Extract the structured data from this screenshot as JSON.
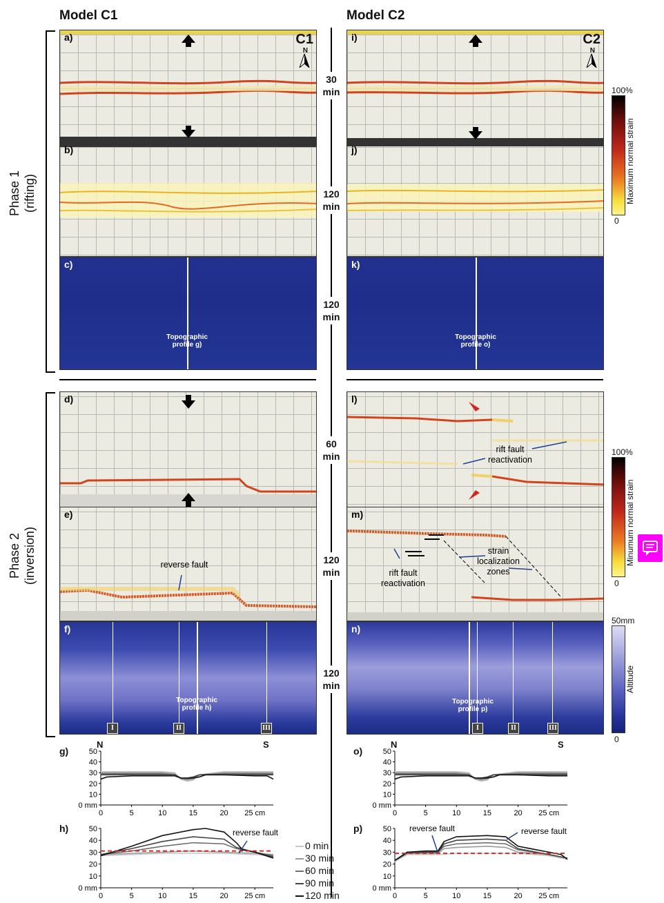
{
  "column_titles": {
    "c1": "Model C1",
    "c2": "Model C2"
  },
  "phase_labels": {
    "phase1": "Phase 1\n(rifting)",
    "phase2": "Phase 2\n(inversion)"
  },
  "panels": {
    "a": "a)",
    "b": "b)",
    "c": "c)",
    "d": "d)",
    "e": "e)",
    "f": "f)",
    "g": "g)",
    "h": "h)",
    "i": "i)",
    "j": "j)",
    "k": "k)",
    "l": "l)",
    "m": "m)",
    "n": "n)",
    "o": "o)",
    "p": "p)"
  },
  "model_tags": {
    "c1": "C1",
    "c2": "C2",
    "north": "N"
  },
  "times": {
    "t30": "30\nmin",
    "t120a": "120\nmin",
    "t120b": "120\nmin",
    "t60": "60\nmin",
    "t120c": "120\nmin",
    "t120d": "120\nmin"
  },
  "profile_labels": {
    "g": "Topographic\nprofile g)",
    "o": "Topographic\nprofile o)",
    "h": "Topographic\nprofile h)",
    "p": "Topographic\nprofile p)"
  },
  "annotations": {
    "reverse_fault_e": "reverse fault",
    "rift_fault_l": "rift fault\nreactivation",
    "strain_loc_m": "strain\nlocalization\nzones",
    "rift_fault_m": "rift fault\nreactivation",
    "reverse_fault_h": "reverse fault",
    "reverse_fault_p1": "reverse fault",
    "reverse_fault_p2": "reverse fault"
  },
  "roman": [
    "I",
    "II",
    "III"
  ],
  "colorbars": {
    "top": {
      "max": "100%",
      "min": "0",
      "label": "Maximum normal strain"
    },
    "mid": {
      "max": "100%",
      "min": "0",
      "label": "Minumum normal strain"
    },
    "bottom": {
      "max": "50mm",
      "min": "0",
      "label": "Altitude"
    }
  },
  "compass": {
    "n": "N",
    "s": "S"
  },
  "legend": [
    "0 min",
    "30 min",
    "60 min",
    "90 min",
    "120 min"
  ],
  "legend_colors": [
    "#c8c8c8",
    "#9a9a9a",
    "#6e6e6e",
    "#444444",
    "#111111"
  ],
  "chart_data": [
    {
      "type": "line",
      "panel": "g)",
      "xlabel": "cm",
      "ylabel": "mm",
      "xticks": [
        "0",
        "5",
        "10",
        "15",
        "20",
        "25 cm"
      ],
      "yticks": [
        "0 mm",
        "10",
        "20",
        "30",
        "40",
        "50"
      ],
      "xlim": [
        0,
        28
      ],
      "ylim": [
        0,
        50
      ],
      "series": [
        {
          "color": "#c8c8c8",
          "x": [
            0,
            5,
            10,
            12,
            13,
            14,
            15,
            16,
            20,
            25,
            28
          ],
          "y": [
            31,
            31,
            31,
            30,
            24,
            22,
            23,
            28,
            31,
            31,
            31
          ]
        },
        {
          "color": "#9a9a9a",
          "x": [
            0,
            5,
            10,
            12,
            13,
            14,
            15,
            16,
            20,
            25,
            28
          ],
          "y": [
            30,
            30,
            30,
            29,
            24,
            23,
            24,
            28,
            30,
            30,
            30
          ]
        },
        {
          "color": "#6e6e6e",
          "x": [
            0,
            5,
            10,
            12,
            13,
            14,
            15,
            16,
            20,
            25,
            28
          ],
          "y": [
            29,
            29,
            29,
            28,
            25,
            24,
            25,
            28,
            29,
            29,
            29
          ]
        },
        {
          "color": "#444444",
          "x": [
            0,
            5,
            10,
            12,
            13,
            14,
            15,
            16,
            20,
            25,
            28
          ],
          "y": [
            28,
            28,
            28,
            28,
            25,
            25,
            26,
            28,
            28,
            28,
            28
          ]
        },
        {
          "color": "#111111",
          "x": [
            0,
            1,
            5,
            10,
            12,
            13,
            14,
            15,
            16,
            17,
            20,
            25,
            27,
            28
          ],
          "y": [
            24,
            26,
            27,
            27,
            27,
            25,
            25,
            25,
            26,
            28,
            28,
            27,
            27,
            24
          ]
        }
      ]
    },
    {
      "type": "line",
      "panel": "h)",
      "xticks": [
        "0",
        "5",
        "10",
        "15",
        "20",
        "25 cm"
      ],
      "yticks": [
        "0 mm",
        "10",
        "20",
        "30",
        "40",
        "50"
      ],
      "xlim": [
        0,
        28
      ],
      "ylim": [
        0,
        50
      ],
      "series": [
        {
          "color": "#c8c8c8",
          "x": [
            0,
            5,
            10,
            15,
            20,
            25,
            28
          ],
          "y": [
            27,
            28,
            29,
            29,
            29,
            28,
            27
          ]
        },
        {
          "color": "#9a9a9a",
          "x": [
            0,
            5,
            10,
            15,
            20,
            25,
            28
          ],
          "y": [
            28,
            29,
            30,
            31,
            30,
            29,
            28
          ]
        },
        {
          "color": "#6e6e6e",
          "x": [
            0,
            5,
            10,
            15,
            20,
            22,
            25,
            28
          ],
          "y": [
            28,
            31,
            35,
            38,
            37,
            33,
            30,
            27
          ]
        },
        {
          "color": "#444444",
          "x": [
            0,
            5,
            10,
            15,
            20,
            22,
            25,
            28
          ],
          "y": [
            28,
            33,
            39,
            43,
            41,
            34,
            30,
            26
          ]
        },
        {
          "color": "#111111",
          "x": [
            0,
            5,
            10,
            15,
            17,
            20,
            22,
            23,
            25,
            28
          ],
          "y": [
            27,
            35,
            44,
            49,
            50,
            47,
            38,
            32,
            30,
            25
          ]
        },
        {
          "color": "#d22b2b",
          "dashed": true,
          "x": [
            0,
            28
          ],
          "y": [
            31,
            31
          ]
        }
      ]
    },
    {
      "type": "line",
      "panel": "o)",
      "xticks": [
        "0",
        "5",
        "10",
        "15",
        "20",
        "25 cm"
      ],
      "yticks": [
        "0 mm",
        "10",
        "20",
        "30",
        "40",
        "50"
      ],
      "xlim": [
        0,
        28
      ],
      "ylim": [
        0,
        50
      ],
      "series": [
        {
          "color": "#c8c8c8",
          "x": [
            0,
            5,
            10,
            12,
            13,
            14,
            15,
            16,
            20,
            25,
            28
          ],
          "y": [
            31,
            31,
            31,
            30,
            24,
            22,
            23,
            28,
            31,
            31,
            31
          ]
        },
        {
          "color": "#9a9a9a",
          "x": [
            0,
            5,
            10,
            12,
            13,
            14,
            15,
            16,
            20,
            25,
            28
          ],
          "y": [
            30,
            30,
            30,
            29,
            24,
            23,
            24,
            28,
            30,
            30,
            30
          ]
        },
        {
          "color": "#6e6e6e",
          "x": [
            0,
            5,
            10,
            12,
            13,
            14,
            15,
            16,
            20,
            25,
            28
          ],
          "y": [
            29,
            29,
            29,
            28,
            25,
            24,
            25,
            28,
            29,
            29,
            29
          ]
        },
        {
          "color": "#444444",
          "x": [
            0,
            5,
            10,
            12,
            13,
            14,
            15,
            16,
            20,
            25,
            28
          ],
          "y": [
            28,
            28,
            28,
            28,
            25,
            25,
            26,
            28,
            28,
            28,
            28
          ]
        },
        {
          "color": "#111111",
          "x": [
            0,
            1,
            5,
            10,
            12,
            13,
            14,
            15,
            16,
            17,
            20,
            25,
            28
          ],
          "y": [
            24,
            26,
            27,
            27,
            27,
            25,
            25,
            25,
            26,
            28,
            28,
            27,
            27
          ]
        }
      ]
    },
    {
      "type": "line",
      "panel": "p)",
      "xticks": [
        "0",
        "5",
        "10",
        "15",
        "20",
        "25 cm"
      ],
      "yticks": [
        "0 mm",
        "10",
        "20",
        "30",
        "40",
        "50"
      ],
      "xlim": [
        0,
        28
      ],
      "ylim": [
        0,
        50
      ],
      "series": [
        {
          "color": "#c8c8c8",
          "x": [
            0,
            2,
            5,
            7,
            10,
            15,
            20,
            25,
            28
          ],
          "y": [
            22,
            28,
            28,
            28,
            29,
            29,
            29,
            27,
            24
          ]
        },
        {
          "color": "#9a9a9a",
          "x": [
            0,
            2,
            5,
            7,
            8,
            10,
            15,
            18,
            20,
            25,
            28
          ],
          "y": [
            23,
            29,
            29,
            29,
            33,
            34,
            35,
            34,
            30,
            28,
            25
          ]
        },
        {
          "color": "#6e6e6e",
          "x": [
            0,
            2,
            5,
            7,
            8,
            10,
            15,
            18,
            20,
            25,
            28
          ],
          "y": [
            23,
            29,
            30,
            30,
            35,
            37,
            38,
            37,
            32,
            28,
            25
          ]
        },
        {
          "color": "#444444",
          "x": [
            0,
            2,
            5,
            7,
            8,
            10,
            15,
            18,
            20,
            25,
            28
          ],
          "y": [
            23,
            30,
            30,
            30,
            37,
            40,
            41,
            40,
            33,
            28,
            25
          ]
        },
        {
          "color": "#111111",
          "x": [
            0,
            2,
            5,
            7,
            8,
            10,
            15,
            18,
            20,
            25,
            27,
            28
          ],
          "y": [
            23,
            30,
            31,
            31,
            39,
            43,
            44,
            43,
            35,
            30,
            28,
            24
          ]
        },
        {
          "color": "#d22b2b",
          "dashed": true,
          "x": [
            0,
            28
          ],
          "y": [
            29,
            29
          ]
        }
      ]
    }
  ]
}
